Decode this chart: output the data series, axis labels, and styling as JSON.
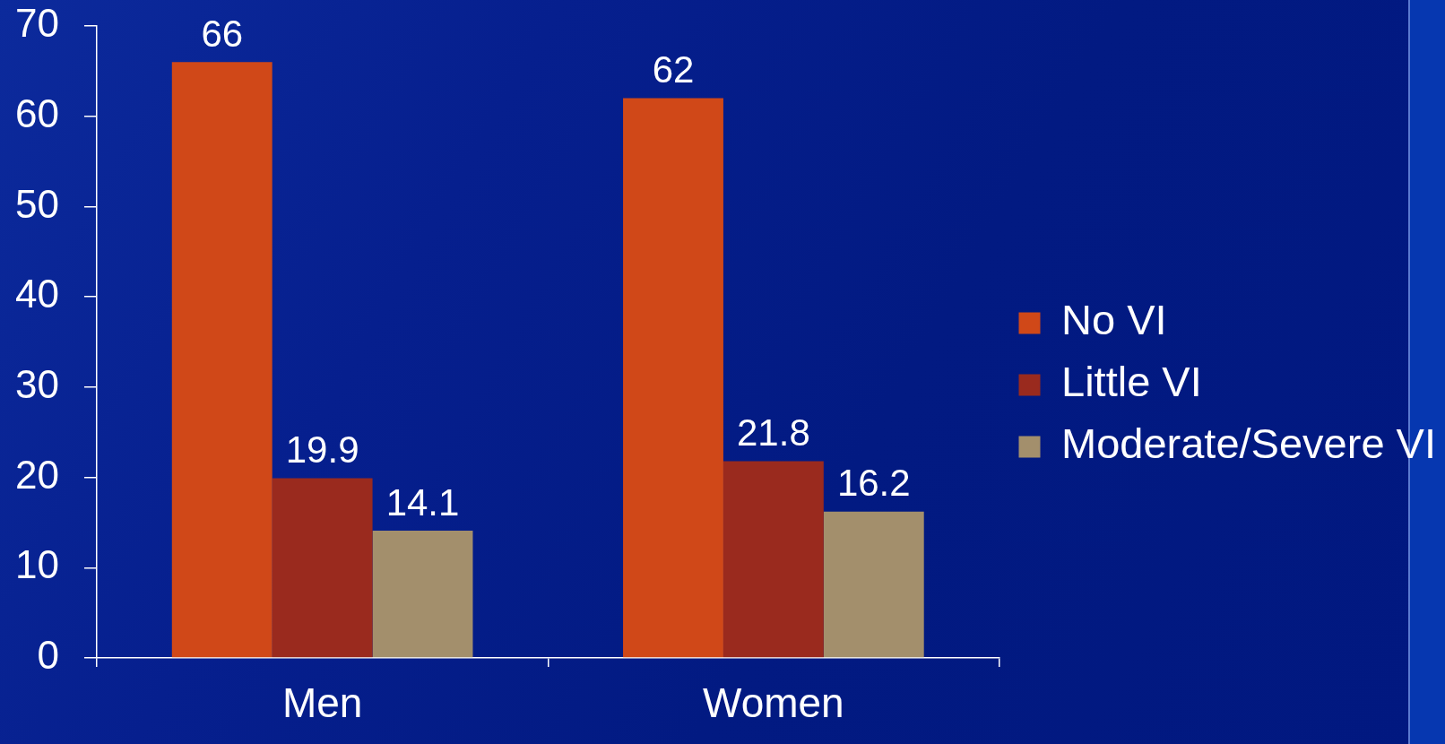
{
  "chart_data": {
    "type": "bar",
    "categories": [
      "Men",
      "Women"
    ],
    "series": [
      {
        "name": "No VI",
        "color": "#d04818",
        "values": [
          66,
          62
        ]
      },
      {
        "name": "Little VI",
        "color": "#9a2a1e",
        "values": [
          19.9,
          21.8
        ]
      },
      {
        "name": "Moderate/Severe VI",
        "color": "#a38f6c",
        "values": [
          14.1,
          16.2
        ]
      }
    ],
    "ylim": [
      0,
      70
    ],
    "yticks": [
      0,
      10,
      20,
      30,
      40,
      50,
      60,
      70
    ],
    "data_labels": true,
    "grid": false,
    "legend": "right"
  }
}
